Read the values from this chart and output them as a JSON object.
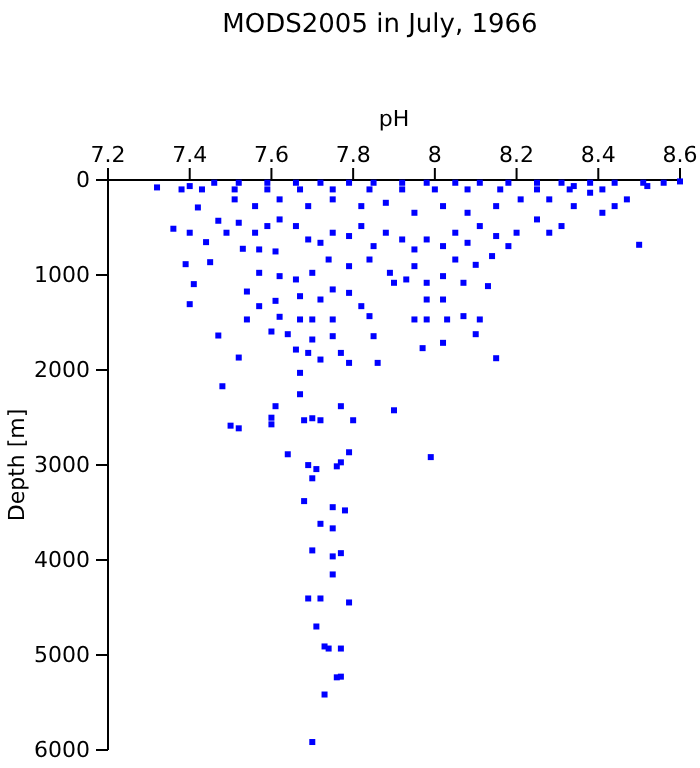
{
  "chart_data": {
    "type": "scatter",
    "title": "MODS2005 in July, 1966",
    "xlabel": "pH",
    "ylabel": "Depth [m]",
    "xlim": [
      7.2,
      8.6
    ],
    "xticks": [
      7.2,
      7.4,
      7.6,
      7.8,
      8,
      8.2,
      8.4,
      8.6
    ],
    "ylim": [
      6000,
      0
    ],
    "yticks": [
      0,
      1000,
      2000,
      3000,
      4000,
      5000,
      6000
    ],
    "grid": false,
    "marker": "square",
    "series": [
      {
        "color": "#0000ff",
        "x": [
          7.48,
          7.67,
          7.61,
          7.77,
          7.9,
          7.5,
          7.52,
          7.6,
          7.6,
          7.68,
          7.7,
          7.72,
          7.8,
          7.64,
          7.79,
          7.99,
          7.69,
          7.71,
          7.76,
          7.77,
          7.7,
          7.68,
          7.75,
          7.78,
          7.72,
          7.75,
          7.7,
          7.75,
          7.77,
          7.75,
          7.69,
          7.72,
          7.79,
          7.71,
          7.73,
          7.74,
          7.77,
          7.76,
          7.77,
          7.73,
          7.7,
          7.32,
          7.38,
          7.4,
          7.42,
          7.39,
          7.41,
          7.4,
          7.47,
          7.52,
          7.45,
          7.36,
          7.4,
          7.44,
          7.47,
          7.49,
          7.53,
          7.57,
          7.61,
          7.57,
          7.54,
          7.57,
          7.61,
          7.54,
          7.6,
          7.64,
          7.62,
          7.67,
          7.7,
          7.75,
          7.7,
          7.75,
          7.66,
          7.69,
          7.77,
          7.72,
          7.79,
          7.67,
          7.86,
          7.85,
          7.95,
          7.98,
          8.03,
          8.07,
          8.11,
          8.1,
          8.02,
          7.97,
          8.15,
          7.98,
          8.02,
          7.9,
          7.93,
          7.98,
          8.02,
          8.07,
          8.13,
          8.14,
          8.1,
          8.05,
          7.95,
          7.89,
          7.84,
          7.79,
          7.74,
          7.7,
          7.66,
          7.62,
          7.67,
          7.72,
          7.75,
          7.79,
          7.82,
          7.84,
          8.5,
          8.41,
          8.44,
          8.47,
          8.52,
          8.56,
          8.6,
          8.38,
          8.34,
          8.31,
          8.28,
          8.25,
          8.2,
          8.18,
          8.15,
          8.11,
          8.08,
          8.05,
          8.02,
          7.98,
          7.95,
          7.92,
          7.88,
          7.85,
          7.82,
          7.79,
          7.75,
          7.72,
          7.69,
          7.66,
          7.62,
          7.59,
          7.56,
          7.52,
          7.51,
          7.56,
          7.62,
          7.69,
          7.75,
          7.82,
          7.88,
          7.95,
          8.02,
          8.08,
          8.15,
          8.21,
          8.28,
          8.34,
          7.46,
          7.52,
          7.59,
          7.66,
          7.72,
          7.79,
          7.85,
          7.92,
          7.98,
          8.05,
          8.11,
          8.18,
          8.25,
          8.31,
          8.38,
          8.44,
          8.51,
          7.43,
          7.51,
          7.59,
          7.67,
          7.75,
          7.84,
          7.92,
          8.0,
          8.08,
          8.16,
          8.25,
          8.33,
          8.41
        ],
        "values": [
          2171,
          2255,
          2381,
          2381,
          2424,
          2586,
          2614,
          2502,
          2572,
          2529,
          2508,
          2529,
          2529,
          2887,
          2866,
          2917,
          3001,
          3043,
          3014,
          2972,
          3140,
          3380,
          3444,
          3478,
          3619,
          3667,
          3899,
          3962,
          3928,
          4152,
          4405,
          4405,
          4447,
          4700,
          4910,
          4932,
          4932,
          5235,
          5228,
          5416,
          5916,
          78,
          99,
          64,
          289,
          886,
          1096,
          1307,
          1637,
          1869,
          865,
          513,
          555,
          654,
          429,
          555,
          724,
          731,
          752,
          977,
          1174,
          1328,
          1272,
          1468,
          1595,
          1623,
          1440,
          1468,
          1468,
          1468,
          1679,
          1644,
          1785,
          1820,
          1820,
          1890,
          1925,
          2030,
          1925,
          1644,
          1468,
          1468,
          1468,
          1433,
          1468,
          1623,
          1714,
          1770,
          1876,
          1258,
          1258,
          1082,
          1047,
          1082,
          1012,
          1082,
          1117,
          801,
          893,
          837,
          907,
          977,
          837,
          907,
          837,
          977,
          1047,
          1012,
          1223,
          1258,
          1152,
          1188,
          1328,
          1433,
          682,
          345,
          275,
          204,
          64,
          29,
          15,
          134,
          275,
          485,
          555,
          415,
          555,
          696,
          590,
          485,
          661,
          555,
          696,
          626,
          731,
          626,
          555,
          696,
          485,
          590,
          555,
          661,
          626,
          485,
          415,
          485,
          555,
          450,
          204,
          275,
          204,
          275,
          204,
          275,
          240,
          345,
          275,
          345,
          275,
          204,
          204,
          64,
          29,
          29,
          29,
          29,
          29,
          29,
          29,
          29,
          29,
          29,
          29,
          29,
          29,
          29,
          29,
          29,
          29,
          99,
          99,
          99,
          99,
          99,
          99,
          99,
          99,
          99,
          99,
          99,
          99,
          99
        ]
      }
    ]
  }
}
